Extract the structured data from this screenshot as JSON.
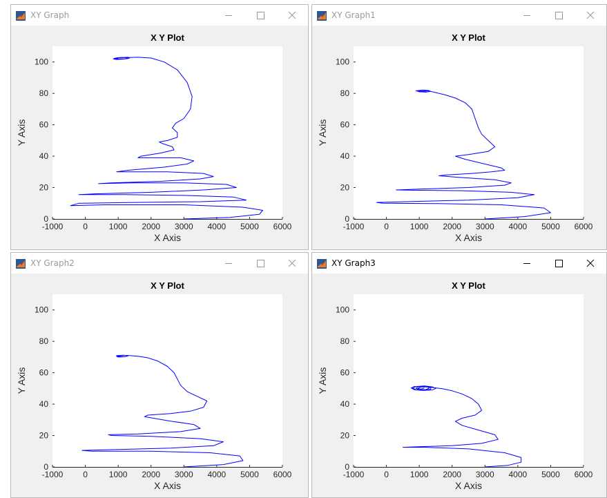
{
  "windows": [
    {
      "title": "XY Graph",
      "active": false,
      "chart_data": {
        "type": "line",
        "title": "X Y Plot",
        "xlabel": "X Axis",
        "ylabel": "Y Axis",
        "xlim": [
          -1000,
          6000
        ],
        "ylim": [
          0,
          110
        ],
        "xticks": [
          "-1000",
          "0",
          "1000",
          "2000",
          "3000",
          "4000",
          "5000",
          "6000"
        ],
        "yticks": [
          "0",
          "20",
          "40",
          "60",
          "80",
          "100"
        ],
        "line_color": "#0000ff",
        "x": [
          3000,
          4400,
          5300,
          5400,
          4800,
          3000,
          600,
          -450,
          -200,
          1500,
          3500,
          4900,
          4500,
          3000,
          1200,
          -200,
          300,
          2000,
          3600,
          4600,
          4300,
          3000,
          1400,
          400,
          800,
          2300,
          3500,
          3900,
          3600,
          2500,
          1500,
          950,
          1300,
          2400,
          3100,
          3300,
          2900,
          2100,
          1600,
          1700,
          2300,
          2700,
          2650,
          2350,
          2250,
          2500,
          2800,
          2800,
          2650,
          2750,
          3000,
          3200,
          3250,
          3100,
          2800,
          2400,
          2000,
          1600,
          1250,
          1000,
          950,
          1000,
          1200,
          1350,
          1300,
          1100,
          900,
          850,
          950,
          1150,
          1300,
          1250,
          1100,
          950,
          900,
          1000
        ],
        "y": [
          0,
          1,
          3,
          5.5,
          7.5,
          9,
          9,
          8.5,
          10,
          10.5,
          11,
          12,
          14,
          15,
          15.5,
          15.5,
          16,
          17,
          18.5,
          20,
          22,
          23,
          23,
          22.5,
          23,
          24,
          25.5,
          27,
          29,
          30,
          30,
          30,
          31,
          33,
          35,
          37,
          39,
          39,
          39,
          40,
          42,
          44,
          46,
          48,
          49,
          50,
          52,
          55,
          58,
          61,
          64,
          70,
          78,
          87,
          95,
          100,
          102.5,
          103,
          102.8,
          102.5,
          102,
          101.8,
          102,
          102.5,
          103,
          102.8,
          102.4,
          102,
          101.6,
          101.8,
          102.2,
          102.6,
          102.9,
          102.6,
          102.2,
          102
        ]
      }
    },
    {
      "title": "XY Graph1",
      "active": false,
      "chart_data": {
        "type": "line",
        "title": "X Y Plot",
        "xlabel": "X Axis",
        "ylabel": "Y Axis",
        "xlim": [
          -1000,
          6000
        ],
        "ylim": [
          0,
          110
        ],
        "xticks": [
          "-1000",
          "0",
          "1000",
          "2000",
          "3000",
          "4000",
          "5000",
          "6000"
        ],
        "yticks": [
          "0",
          "20",
          "40",
          "60",
          "80",
          "100"
        ],
        "line_color": "#0000ff",
        "x": [
          3000,
          4200,
          5000,
          4800,
          3500,
          1500,
          -100,
          -300,
          600,
          2500,
          4000,
          4500,
          3800,
          2300,
          800,
          300,
          1000,
          2500,
          3600,
          3800,
          3300,
          2200,
          1600,
          1800,
          2600,
          3200,
          3600,
          3500,
          3000,
          2400,
          2100,
          2500,
          3100,
          3300,
          3100,
          2900,
          2800,
          2700,
          2600,
          2400,
          2100,
          1800,
          1500,
          1300,
          1100,
          950,
          1000,
          1200,
          1350,
          1250,
          1050,
          900,
          1000,
          1200,
          1300,
          1150,
          1000
        ],
        "y": [
          0,
          1.5,
          4,
          7,
          9,
          9.8,
          10,
          10.5,
          11,
          12,
          13.5,
          15.5,
          17,
          18,
          18.3,
          18.5,
          19,
          20,
          21.5,
          23,
          25,
          26.5,
          27.5,
          28,
          29,
          30,
          31,
          32.5,
          35,
          38,
          40,
          41,
          43,
          46,
          50,
          54,
          58,
          64,
          70,
          74,
          77,
          79,
          80.5,
          81.5,
          82,
          81.5,
          81,
          80.8,
          81.3,
          81.9,
          82,
          81.6,
          81.2,
          81.4,
          81.8,
          82,
          81.6
        ]
      }
    },
    {
      "title": "XY Graph2",
      "active": false,
      "chart_data": {
        "type": "line",
        "title": "X Y Plot",
        "xlabel": "X Axis",
        "ylabel": "Y Axis",
        "xlim": [
          -1000,
          6000
        ],
        "ylim": [
          0,
          110
        ],
        "xticks": [
          "-1000",
          "0",
          "1000",
          "2000",
          "3000",
          "4000",
          "5000",
          "6000"
        ],
        "yticks": [
          "0",
          "20",
          "40",
          "60",
          "80",
          "100"
        ],
        "line_color": "#0000ff",
        "x": [
          3000,
          4200,
          4800,
          4700,
          3800,
          2000,
          200,
          -100,
          800,
          2600,
          3900,
          4200,
          3500,
          2000,
          800,
          700,
          1600,
          2900,
          3500,
          3300,
          2500,
          1800,
          1900,
          2600,
          3200,
          3600,
          3700,
          3400,
          3100,
          2900,
          2800,
          2700,
          2500,
          2200,
          1900,
          1600,
          1300,
          1100,
          950,
          1000,
          1200,
          1300,
          1150,
          950,
          1000,
          1150
        ],
        "y": [
          0,
          1.5,
          4,
          7,
          9,
          10,
          10,
          10.5,
          11,
          12,
          13.5,
          16,
          18,
          19.5,
          20,
          20.5,
          21,
          22.5,
          24.5,
          27,
          29.5,
          32,
          33,
          34,
          35.5,
          38,
          42,
          45,
          48,
          52,
          56,
          60,
          64,
          67.5,
          69.5,
          70.5,
          71,
          71,
          70.5,
          70,
          70.2,
          70.8,
          71.2,
          70.9,
          70.4,
          70.3
        ]
      }
    },
    {
      "title": "XY Graph3",
      "active": true,
      "chart_data": {
        "type": "line",
        "title": "X Y Plot",
        "xlabel": "X Axis",
        "ylabel": "Y Axis",
        "xlim": [
          -1000,
          6000
        ],
        "ylim": [
          0,
          110
        ],
        "xticks": [
          "-1000",
          "0",
          "1000",
          "2000",
          "3000",
          "4000",
          "5000",
          "6000"
        ],
        "yticks": [
          "0",
          "20",
          "40",
          "60",
          "80",
          "100"
        ],
        "line_color": "#0000ff",
        "x": [
          3000,
          3700,
          4100,
          4100,
          3600,
          2500,
          1200,
          500,
          900,
          2000,
          2900,
          3400,
          3300,
          2800,
          2300,
          2100,
          2300,
          2700,
          2900,
          2800,
          2600,
          2300,
          2000,
          1700,
          1400,
          1100,
          850,
          750,
          850,
          1100,
          1400,
          1500,
          1400,
          1150,
          900,
          800,
          900,
          1150,
          1350,
          1350,
          1150,
          950,
          900,
          1000,
          1200,
          1300,
          1250,
          1050,
          950,
          1050,
          1150
        ],
        "y": [
          0,
          1,
          3,
          6,
          9,
          11.5,
          12.5,
          12.5,
          12.8,
          13.5,
          15,
          17.5,
          20.5,
          23.5,
          26.5,
          29,
          31,
          33,
          36,
          40,
          43.5,
          46.5,
          48.5,
          49.8,
          50.6,
          51.2,
          51.2,
          50.3,
          49.2,
          48.7,
          49,
          50,
          51,
          51.6,
          51.2,
          50.2,
          49.2,
          48.9,
          49.5,
          50.5,
          51.3,
          51,
          50,
          49.2,
          49.3,
          50.2,
          51,
          50.9,
          50,
          49.6,
          50.2
        ]
      }
    }
  ]
}
